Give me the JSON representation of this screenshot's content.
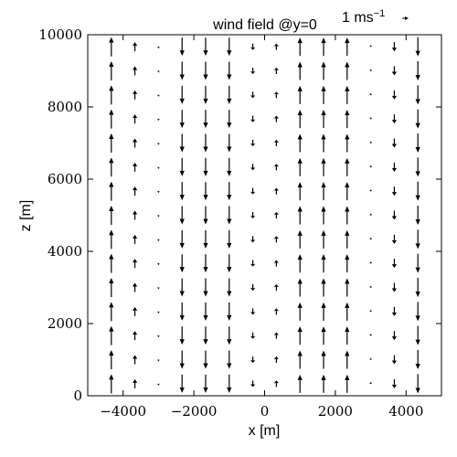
{
  "chart_data": {
    "type": "quiver",
    "title": "wind field @y=0",
    "xlabel": "x [m]",
    "ylabel": "z [m]",
    "xlim": [
      -5000,
      5000
    ],
    "ylim": [
      0,
      10000
    ],
    "xticks": [
      -4000,
      -2000,
      0,
      2000,
      4000
    ],
    "xtick_labels": [
      "−4000",
      "−2000",
      "0",
      "2000",
      "4000"
    ],
    "yticks": [
      0,
      2000,
      4000,
      6000,
      8000,
      10000
    ],
    "ytick_labels": [
      "0",
      "2000",
      "4000",
      "6000",
      "8000",
      "10000"
    ],
    "quiver_key": {
      "value": 1,
      "label_prefix": "1 ms",
      "label_exponent": "−1"
    },
    "columns_x": [
      -4333,
      -3667,
      -3000,
      -2333,
      -1667,
      -1000,
      -333,
      333,
      1000,
      1667,
      2333,
      3000,
      3667,
      4333
    ],
    "rows_z": [
      333,
      1000,
      1667,
      2333,
      3000,
      3667,
      4333,
      5000,
      5667,
      6333,
      7000,
      7667,
      8333,
      9000,
      9667
    ],
    "column_w": [
      2.1,
      1.0,
      -0.2,
      -2.0,
      -2.0,
      -2.0,
      -0.7,
      0.7,
      2.0,
      2.0,
      2.0,
      0.2,
      -1.0,
      -2.1
    ]
  }
}
